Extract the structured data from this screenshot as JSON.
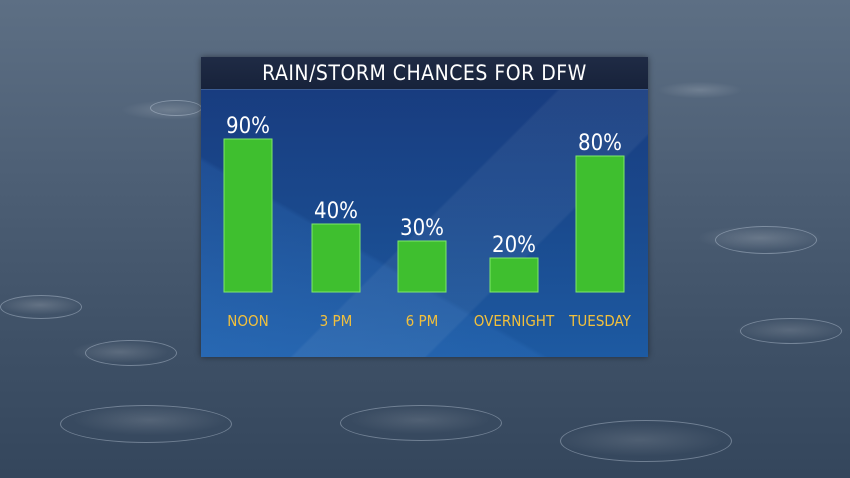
{
  "chart_data": {
    "type": "bar",
    "title": "RAIN/STORM CHANCES FOR DFW",
    "categories": [
      "NOON",
      "3 PM",
      "6 PM",
      "OVERNIGHT",
      "TUESDAY"
    ],
    "values": [
      90,
      40,
      30,
      20,
      80
    ],
    "value_labels": [
      "90%",
      "40%",
      "30%",
      "20%",
      "80%"
    ],
    "ylim": [
      0,
      100
    ],
    "colors": {
      "bar": "#3fbf2f",
      "bar_edge": "#7fe86a",
      "value_text": "#ffffff",
      "category_text": "#f2c03c",
      "panel": "#1a4a8e",
      "title_bar": "#1c2740"
    }
  }
}
